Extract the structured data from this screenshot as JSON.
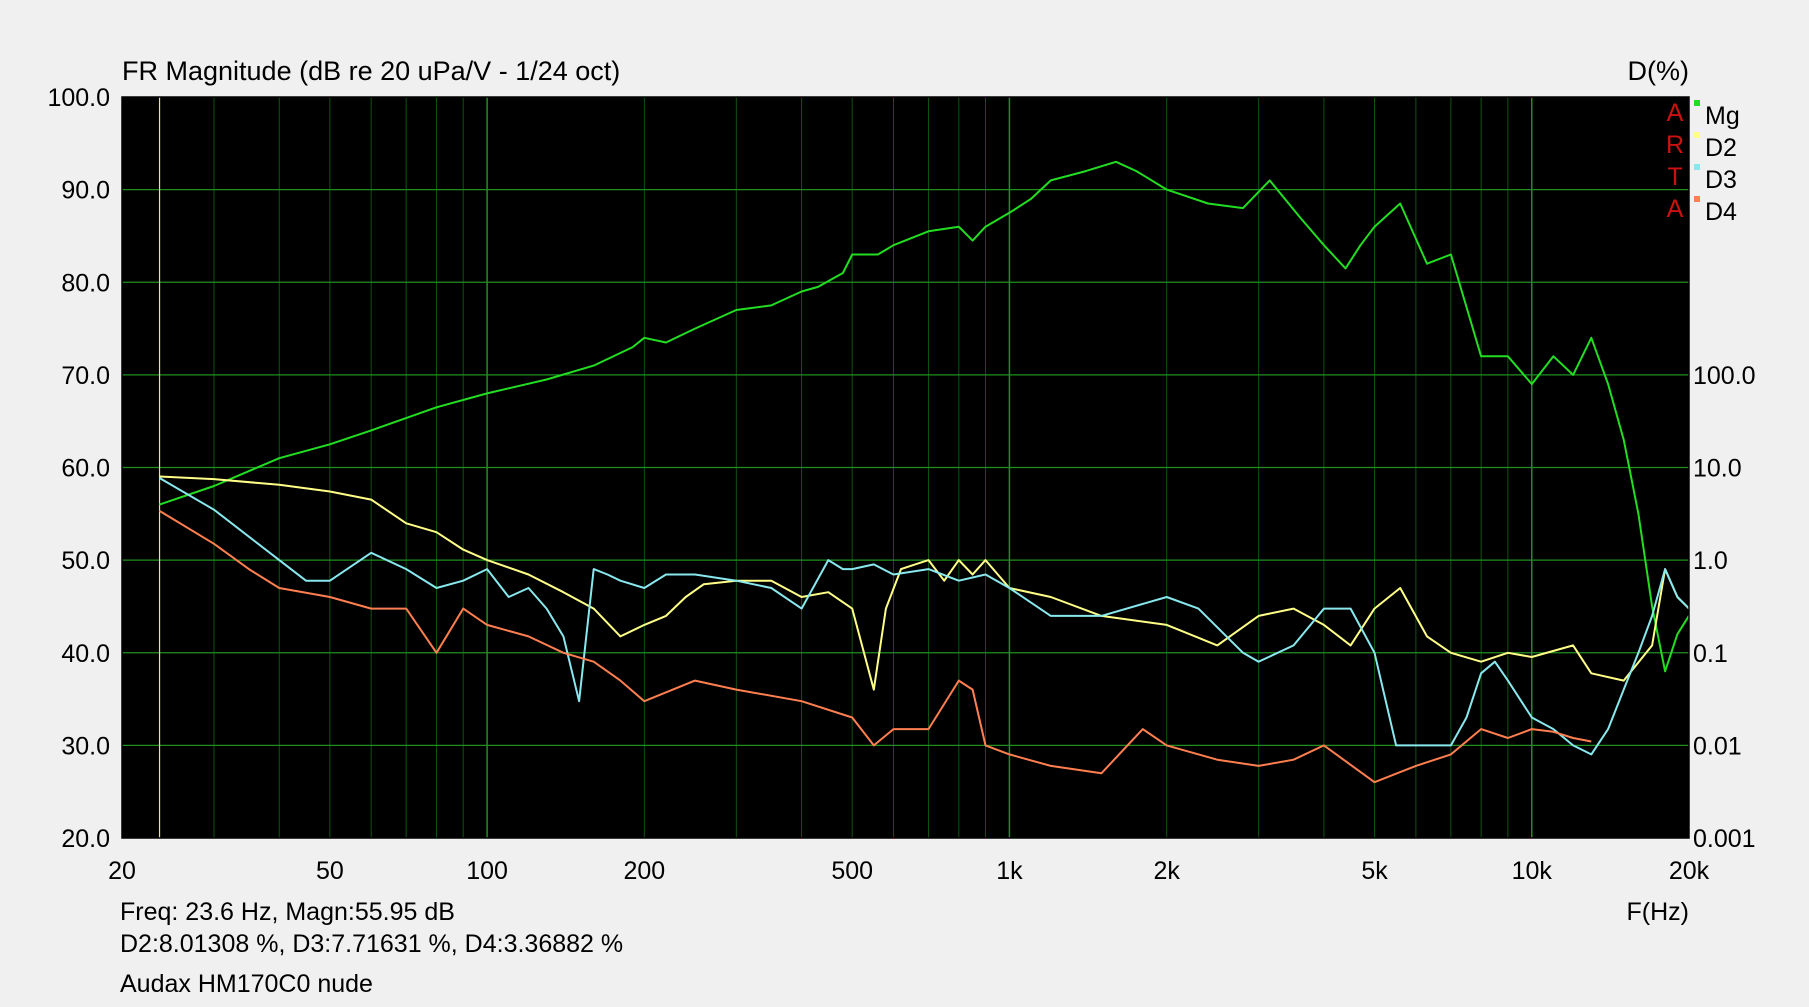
{
  "chart_data": {
    "type": "line",
    "title": "FR Magnitude (dB re 20 uPa/V - 1/24 oct)",
    "right_axis_title": "D(%)",
    "xlabel": "F(Hz)",
    "x_scale": "log",
    "xlim": [
      20,
      20000
    ],
    "x_ticks": [
      20,
      50,
      100,
      200,
      500,
      1000,
      2000,
      5000,
      10000,
      20000
    ],
    "x_tick_labels": [
      "20",
      "50",
      "100",
      "200",
      "500",
      "1k",
      "2k",
      "5k",
      "10k",
      "20k"
    ],
    "ylim": [
      20,
      100
    ],
    "y_ticks": [
      20,
      30,
      40,
      50,
      60,
      70,
      80,
      90,
      100
    ],
    "y_tick_labels": [
      "20.0",
      "30.0",
      "40.0",
      "50.0",
      "60.0",
      "70.0",
      "80.0",
      "90.0",
      "100.0"
    ],
    "y2_scale": "log",
    "y2lim": [
      0.001,
      100
    ],
    "y2_ticks": [
      0.001,
      0.01,
      0.1,
      1,
      10,
      100
    ],
    "y2_tick_labels": [
      "0.001",
      "0.01",
      "0.1",
      "1.0",
      "10.0",
      "100.0"
    ],
    "grid": true,
    "cursor_freq": 23.6,
    "legend": {
      "placement": "top-right",
      "side_letters": [
        "A",
        "R",
        "T",
        "A"
      ],
      "entries": [
        "Mg",
        "D2",
        "D3",
        "D4"
      ]
    },
    "series": [
      {
        "name": "Mg",
        "axis": "left",
        "color": "#22dd22",
        "x": [
          23.6,
          30,
          40,
          50,
          60,
          80,
          100,
          130,
          160,
          190,
          200,
          220,
          250,
          300,
          350,
          400,
          430,
          480,
          500,
          560,
          600,
          700,
          800,
          850,
          900,
          1000,
          1100,
          1200,
          1400,
          1600,
          1750,
          2000,
          2400,
          2800,
          3150,
          3600,
          4000,
          4400,
          4700,
          5000,
          5600,
          6300,
          7000,
          8000,
          9000,
          10000,
          11000,
          12000,
          13000,
          14000,
          15000,
          16000,
          17000,
          18000,
          19000,
          20000
        ],
        "y": [
          56,
          58,
          61,
          62.5,
          64,
          66.5,
          68,
          69.5,
          71,
          73,
          74,
          73.5,
          75,
          77,
          77.5,
          79,
          79.5,
          81,
          83,
          83,
          84,
          85.5,
          86,
          84.5,
          86,
          87.5,
          89,
          91,
          92,
          93,
          92,
          90,
          88.5,
          88,
          91,
          87,
          84,
          81.5,
          84,
          86,
          88.5,
          82,
          83,
          72,
          72,
          69,
          72,
          70,
          74,
          69,
          63,
          55,
          45,
          38,
          42,
          44
        ]
      },
      {
        "name": "D2",
        "axis": "right",
        "color": "#ffff88",
        "x": [
          23.6,
          30,
          40,
          50,
          60,
          70,
          80,
          90,
          100,
          120,
          140,
          160,
          180,
          200,
          220,
          240,
          260,
          300,
          350,
          400,
          450,
          500,
          550,
          580,
          620,
          700,
          750,
          800,
          850,
          900,
          1000,
          1200,
          1500,
          2000,
          2500,
          3000,
          3500,
          4000,
          4500,
          5000,
          5600,
          6300,
          7000,
          8000,
          9000,
          10000,
          12000,
          13000,
          15000,
          17000,
          18000,
          19000,
          20000
        ],
        "y": [
          8.0,
          7.5,
          6.5,
          5.5,
          4.5,
          2.5,
          2.0,
          1.3,
          1.0,
          0.7,
          0.45,
          0.3,
          0.15,
          0.2,
          0.25,
          0.4,
          0.55,
          0.6,
          0.6,
          0.4,
          0.45,
          0.3,
          0.04,
          0.3,
          0.8,
          1.0,
          0.6,
          1.0,
          0.7,
          1.0,
          0.5,
          0.4,
          0.25,
          0.2,
          0.12,
          0.25,
          0.3,
          0.2,
          0.12,
          0.3,
          0.5,
          0.15,
          0.1,
          0.08,
          0.1,
          0.09,
          0.12,
          0.06,
          0.05,
          0.12,
          0.8,
          0.4,
          0.3
        ]
      },
      {
        "name": "D3",
        "axis": "right",
        "color": "#88e8ee",
        "x": [
          23.6,
          30,
          40,
          45,
          50,
          60,
          70,
          80,
          90,
          100,
          110,
          120,
          130,
          140,
          150,
          160,
          170,
          180,
          200,
          220,
          250,
          300,
          350,
          400,
          450,
          480,
          500,
          550,
          600,
          700,
          800,
          900,
          1000,
          1200,
          1500,
          2000,
          2300,
          2800,
          3000,
          3500,
          4000,
          4500,
          5000,
          5500,
          6000,
          7000,
          7500,
          8000,
          8500,
          9000,
          10000,
          11000,
          12000,
          13000,
          14000,
          15000,
          16000,
          17000,
          18000,
          19000,
          20000
        ],
        "y": [
          7.7,
          3.5,
          1.0,
          0.6,
          0.6,
          1.2,
          0.8,
          0.5,
          0.6,
          0.8,
          0.4,
          0.5,
          0.3,
          0.15,
          0.03,
          0.8,
          0.7,
          0.6,
          0.5,
          0.7,
          0.7,
          0.6,
          0.5,
          0.3,
          1.0,
          0.8,
          0.8,
          0.9,
          0.7,
          0.8,
          0.6,
          0.7,
          0.5,
          0.25,
          0.25,
          0.4,
          0.3,
          0.1,
          0.08,
          0.12,
          0.3,
          0.3,
          0.1,
          0.01,
          0.01,
          0.01,
          0.02,
          0.06,
          0.08,
          0.05,
          0.02,
          0.015,
          0.01,
          0.008,
          0.015,
          0.04,
          0.1,
          0.25,
          0.8,
          0.4,
          0.3
        ]
      },
      {
        "name": "D4",
        "axis": "right",
        "color": "#ff7f50",
        "x": [
          23.6,
          30,
          35,
          40,
          50,
          60,
          70,
          80,
          90,
          100,
          120,
          140,
          160,
          180,
          200,
          250,
          300,
          400,
          500,
          550,
          600,
          700,
          800,
          850,
          900,
          1000,
          1200,
          1500,
          1800,
          2000,
          2500,
          3000,
          3500,
          4000,
          5000,
          6000,
          7000,
          8000,
          9000,
          10000,
          11000,
          12000,
          13000
        ],
        "y": [
          3.4,
          1.5,
          0.8,
          0.5,
          0.4,
          0.3,
          0.3,
          0.1,
          0.3,
          0.2,
          0.15,
          0.1,
          0.08,
          0.05,
          0.03,
          0.05,
          0.04,
          0.03,
          0.02,
          0.01,
          0.015,
          0.015,
          0.05,
          0.04,
          0.01,
          0.008,
          0.006,
          0.005,
          0.015,
          0.01,
          0.007,
          0.006,
          0.007,
          0.01,
          0.004,
          0.006,
          0.008,
          0.015,
          0.012,
          0.015,
          0.014,
          0.012,
          0.011
        ]
      }
    ]
  },
  "readout": {
    "line1": "Freq: 23.6 Hz, Magn:55.95 dB",
    "line2": "D2:8.01308 %, D3:7.71631 %, D4:3.36882 %",
    "caption": "Audax HM170C0 nude"
  }
}
